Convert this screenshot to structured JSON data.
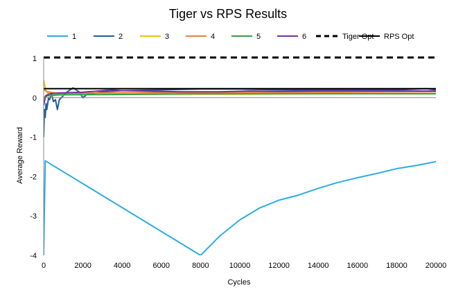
{
  "chart_data": {
    "type": "line",
    "title": "Tiger vs RPS Results",
    "xlabel": "Cycles",
    "ylabel": "Average Reward",
    "xlim": [
      0,
      20000
    ],
    "ylim": [
      -4,
      1
    ],
    "x_ticks": [
      0,
      2000,
      4000,
      6000,
      8000,
      10000,
      12000,
      14000,
      16000,
      18000,
      20000
    ],
    "y_ticks": [
      1,
      0,
      -1,
      -2,
      -3,
      -4
    ],
    "x_tick_labels": [
      "0",
      "2000",
      "4000",
      "6000",
      "8000",
      "10000",
      "12000",
      "14000",
      "16000",
      "18000",
      "20000"
    ],
    "y_tick_labels": [
      "1",
      "0",
      "-1",
      "-2",
      "-3",
      "-4"
    ],
    "grid": false,
    "legend_position": "top",
    "series": [
      {
        "name": "1",
        "color": "#2aace2",
        "dash": "solid",
        "points": [
          [
            0,
            -4
          ],
          [
            80,
            -1.6
          ],
          [
            8000,
            -4.0
          ],
          [
            9000,
            -3.5
          ],
          [
            10000,
            -3.1
          ],
          [
            11000,
            -2.8
          ],
          [
            12000,
            -2.6
          ],
          [
            13000,
            -2.47
          ],
          [
            14000,
            -2.3
          ],
          [
            15000,
            -2.15
          ],
          [
            16000,
            -2.03
          ],
          [
            17000,
            -1.92
          ],
          [
            18000,
            -1.8
          ],
          [
            19000,
            -1.72
          ],
          [
            20000,
            -1.62
          ]
        ]
      },
      {
        "name": "2",
        "color": "#1f5c99",
        "dash": "solid",
        "points": [
          [
            0,
            -1.0
          ],
          [
            40,
            -0.3
          ],
          [
            80,
            -0.5
          ],
          [
            120,
            -0.15
          ],
          [
            160,
            -0.3
          ],
          [
            250,
            0.0
          ],
          [
            300,
            -0.05
          ],
          [
            400,
            0.1
          ],
          [
            500,
            -0.1
          ],
          [
            600,
            -0.05
          ],
          [
            700,
            -0.3
          ],
          [
            800,
            -0.05
          ],
          [
            900,
            0.0
          ],
          [
            1000,
            0.05
          ],
          [
            1200,
            0.15
          ],
          [
            1500,
            0.25
          ],
          [
            1800,
            0.15
          ],
          [
            2000,
            0.0
          ],
          [
            2200,
            0.08
          ],
          [
            3000,
            0.15
          ],
          [
            4000,
            0.18
          ],
          [
            6000,
            0.2
          ],
          [
            8000,
            0.22
          ],
          [
            10000,
            0.22
          ],
          [
            12000,
            0.2
          ],
          [
            14000,
            0.2
          ],
          [
            16000,
            0.2
          ],
          [
            18000,
            0.2
          ],
          [
            19500,
            0.23
          ],
          [
            20000,
            0.2
          ]
        ]
      },
      {
        "name": "3",
        "color": "#f0c000",
        "dash": "solid",
        "points": [
          [
            0,
            0.45
          ],
          [
            100,
            0.2
          ],
          [
            300,
            0.05
          ],
          [
            1000,
            0.07
          ],
          [
            3000,
            0.08
          ],
          [
            6000,
            0.09
          ],
          [
            10000,
            0.09
          ],
          [
            15000,
            0.1
          ],
          [
            20000,
            0.1
          ]
        ]
      },
      {
        "name": "4",
        "color": "#ed7d31",
        "dash": "solid",
        "points": [
          [
            0,
            0.2
          ],
          [
            200,
            0.15
          ],
          [
            600,
            0.12
          ],
          [
            2000,
            0.12
          ],
          [
            6000,
            0.13
          ],
          [
            10000,
            0.14
          ],
          [
            15000,
            0.14
          ],
          [
            20000,
            0.15
          ]
        ]
      },
      {
        "name": "5",
        "color": "#2ea043",
        "dash": "solid",
        "points": [
          [
            0,
            0.0
          ],
          [
            200,
            0.05
          ],
          [
            800,
            0.08
          ],
          [
            3000,
            0.08
          ],
          [
            8000,
            0.1
          ],
          [
            12000,
            0.1
          ],
          [
            16000,
            0.1
          ],
          [
            20000,
            0.1
          ]
        ]
      },
      {
        "name": "6",
        "color": "#7030a0",
        "dash": "solid",
        "points": [
          [
            0,
            -0.2
          ],
          [
            100,
            0.05
          ],
          [
            300,
            0.1
          ],
          [
            800,
            0.12
          ],
          [
            2000,
            0.14
          ],
          [
            3500,
            0.2
          ],
          [
            4000,
            0.18
          ],
          [
            5000,
            0.17
          ],
          [
            7000,
            0.15
          ],
          [
            9000,
            0.15
          ],
          [
            10500,
            0.17
          ],
          [
            12000,
            0.16
          ],
          [
            14000,
            0.17
          ],
          [
            16000,
            0.17
          ],
          [
            18000,
            0.17
          ],
          [
            20000,
            0.17
          ]
        ]
      },
      {
        "name": "Tiger Opt",
        "color": "#000000",
        "dash": "dashed",
        "points": [
          [
            0,
            1.02
          ],
          [
            20000,
            1.02
          ]
        ]
      },
      {
        "name": "RPS Opt",
        "color": "#000000",
        "dash": "solid",
        "points": [
          [
            0,
            0.23
          ],
          [
            20000,
            0.23
          ]
        ]
      }
    ]
  }
}
